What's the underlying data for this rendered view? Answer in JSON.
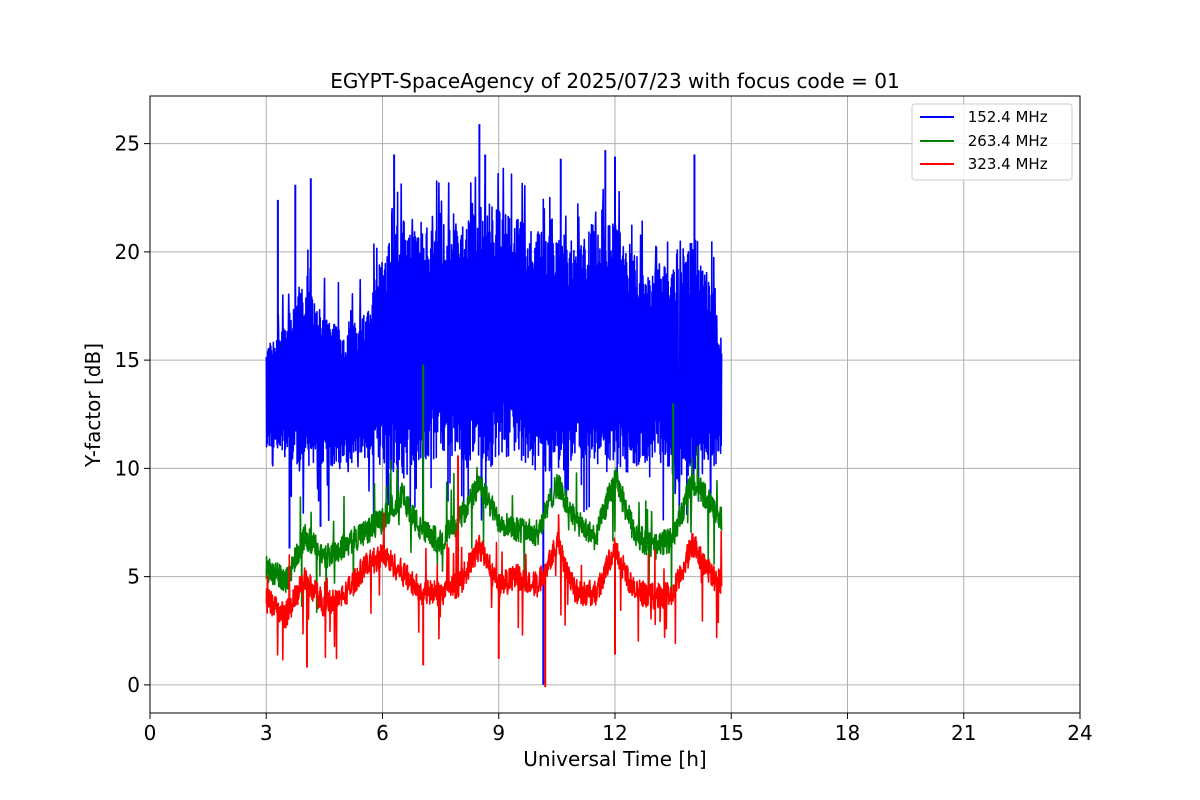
{
  "chart_data": {
    "type": "line",
    "title": "EGYPT-SpaceAgency of 2025/07/23 with focus code = 01",
    "xlabel": "Universal Time [h]",
    "ylabel": "Y-factor [dB]",
    "xlim": [
      0,
      24
    ],
    "ylim": [
      -1.3,
      27.2
    ],
    "xticks": [
      0,
      3,
      6,
      9,
      12,
      15,
      18,
      21,
      24
    ],
    "yticks": [
      0,
      5,
      10,
      15,
      20,
      25
    ],
    "grid": true,
    "legend_position": "top-right",
    "series": [
      {
        "name": " 152.4 MHz",
        "color": "#0000ff",
        "x_start": 3.0,
        "x_end": 14.75,
        "profile": [
          [
            3.0,
            11.0,
            15.5
          ],
          [
            3.5,
            10.5,
            17.0
          ],
          [
            4.0,
            10.0,
            18.5
          ],
          [
            4.5,
            10.0,
            17.0
          ],
          [
            5.0,
            10.0,
            16.5
          ],
          [
            5.5,
            10.5,
            17.0
          ],
          [
            6.0,
            10.0,
            20.0
          ],
          [
            6.5,
            9.5,
            21.5
          ],
          [
            7.0,
            10.0,
            21.0
          ],
          [
            7.5,
            10.5,
            21.5
          ],
          [
            8.0,
            10.0,
            21.0
          ],
          [
            8.5,
            10.0,
            22.5
          ],
          [
            9.0,
            10.5,
            22.0
          ],
          [
            9.5,
            10.5,
            21.5
          ],
          [
            10.0,
            9.5,
            21.0
          ],
          [
            10.5,
            10.0,
            21.0
          ],
          [
            11.0,
            10.5,
            20.5
          ],
          [
            11.5,
            10.0,
            21.5
          ],
          [
            12.0,
            9.5,
            21.5
          ],
          [
            12.5,
            10.0,
            20.0
          ],
          [
            13.0,
            10.5,
            19.0
          ],
          [
            13.5,
            9.5,
            20.0
          ],
          [
            14.0,
            9.5,
            20.5
          ],
          [
            14.5,
            10.0,
            18.5
          ],
          [
            14.75,
            10.5,
            15.5
          ]
        ],
        "spikes": [
          [
            3.3,
            22.4
          ],
          [
            3.75,
            23.1
          ],
          [
            4.15,
            23.4
          ],
          [
            6.3,
            24.5
          ],
          [
            8.5,
            25.9
          ],
          [
            8.65,
            24.5
          ],
          [
            10.6,
            24.3
          ],
          [
            11.75,
            24.7
          ],
          [
            12.0,
            24.4
          ],
          [
            14.05,
            24.5
          ],
          [
            10.15,
            0.0
          ],
          [
            3.6,
            6.3
          ],
          [
            4.4,
            7.3
          ]
        ]
      },
      {
        "name": " 263.4 MHz",
        "color": "#008000",
        "x_start": 3.0,
        "x_end": 14.75,
        "profile": [
          [
            3.0,
            5.4
          ],
          [
            3.5,
            4.8
          ],
          [
            4.0,
            6.9
          ],
          [
            4.5,
            5.9
          ],
          [
            5.0,
            6.4
          ],
          [
            5.5,
            7.0
          ],
          [
            6.0,
            7.6
          ],
          [
            6.5,
            8.8
          ],
          [
            7.0,
            7.1
          ],
          [
            7.5,
            6.6
          ],
          [
            8.0,
            7.7
          ],
          [
            8.5,
            9.2
          ],
          [
            9.0,
            7.6
          ],
          [
            9.5,
            7.2
          ],
          [
            10.0,
            7.0
          ],
          [
            10.5,
            9.3
          ],
          [
            11.0,
            7.5
          ],
          [
            11.5,
            6.8
          ],
          [
            12.0,
            9.6
          ],
          [
            12.5,
            7.0
          ],
          [
            13.0,
            6.3
          ],
          [
            13.5,
            6.8
          ],
          [
            14.0,
            9.4
          ],
          [
            14.5,
            8.4
          ],
          [
            14.75,
            7.6
          ]
        ],
        "spikes": [
          [
            7.05,
            14.8
          ],
          [
            13.5,
            13.0
          ]
        ]
      },
      {
        "name": " 323.4 MHz",
        "color": "#ff0000",
        "x_start": 3.0,
        "x_end": 14.75,
        "profile": [
          [
            3.0,
            3.9
          ],
          [
            3.5,
            3.2
          ],
          [
            4.0,
            4.9
          ],
          [
            4.5,
            3.7
          ],
          [
            5.0,
            4.1
          ],
          [
            5.5,
            5.4
          ],
          [
            6.0,
            6.0
          ],
          [
            6.5,
            5.2
          ],
          [
            7.0,
            4.3
          ],
          [
            7.5,
            4.2
          ],
          [
            8.0,
            4.7
          ],
          [
            8.5,
            6.4
          ],
          [
            9.0,
            4.6
          ],
          [
            9.5,
            5.0
          ],
          [
            10.0,
            4.6
          ],
          [
            10.5,
            6.6
          ],
          [
            11.0,
            4.3
          ],
          [
            11.5,
            4.2
          ],
          [
            12.0,
            6.3
          ],
          [
            12.5,
            4.3
          ],
          [
            13.0,
            4.1
          ],
          [
            13.5,
            4.2
          ],
          [
            14.0,
            6.5
          ],
          [
            14.5,
            5.0
          ],
          [
            14.75,
            4.8
          ]
        ],
        "spikes": [
          [
            4.05,
            0.8
          ],
          [
            7.05,
            0.9
          ],
          [
            9.0,
            1.2
          ],
          [
            10.2,
            -0.1
          ],
          [
            7.95,
            10.6
          ],
          [
            12.0,
            1.4
          ]
        ]
      }
    ]
  }
}
